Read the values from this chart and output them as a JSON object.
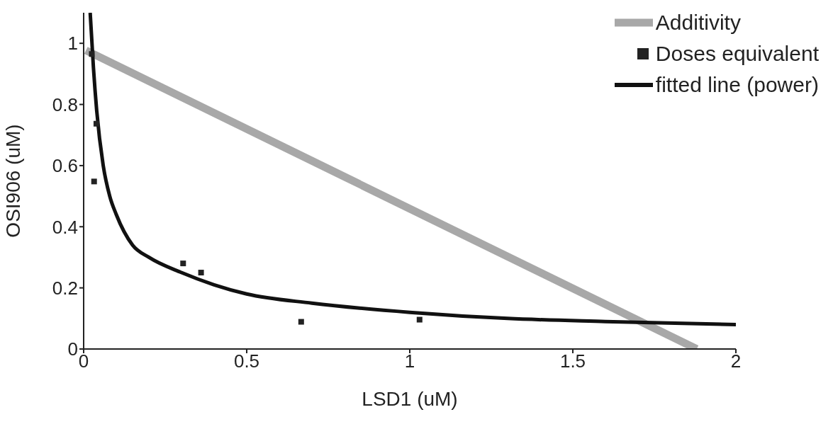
{
  "chart_data": {
    "type": "line",
    "xlabel": "LSD1 (uM)",
    "ylabel": "OSI906 (uM)",
    "xlim": [
      0,
      2
    ],
    "ylim": [
      0,
      1.1
    ],
    "xticks": [
      0,
      0.5,
      1,
      1.5,
      2
    ],
    "yticks": [
      0,
      0.2,
      0.4,
      0.6,
      0.8,
      1
    ],
    "grid": false,
    "legend": "top right",
    "series": [
      {
        "name": "Additivity",
        "type": "line",
        "color": "#a8a8a8",
        "marker": "none",
        "line_style": "solid",
        "x": [
          0.007,
          1.88
        ],
        "values": [
          0.977,
          0
        ]
      },
      {
        "name": "Doses equivalent",
        "type": "scatter",
        "color": "#222222",
        "marker": "square",
        "x": [
          0.025,
          0.039,
          0.032,
          0.305,
          0.36,
          0.667,
          1.03
        ],
        "values": [
          0.965,
          0.737,
          0.548,
          0.28,
          0.25,
          0.089,
          0.096
        ]
      },
      {
        "name": "fitted line (power)",
        "type": "line",
        "color": "#111111",
        "marker": "none",
        "line_style": "solid",
        "x": [
          0.02,
          0.03,
          0.04,
          0.06,
          0.08,
          0.1,
          0.15,
          0.2,
          0.3,
          0.4,
          0.5,
          0.7,
          1,
          1.3,
          1.6,
          2
        ],
        "values": [
          1.1,
          0.92,
          0.78,
          0.6,
          0.5,
          0.44,
          0.34,
          0.3,
          0.25,
          0.21,
          0.18,
          0.15,
          0.12,
          0.1,
          0.09,
          0.08
        ]
      }
    ]
  }
}
